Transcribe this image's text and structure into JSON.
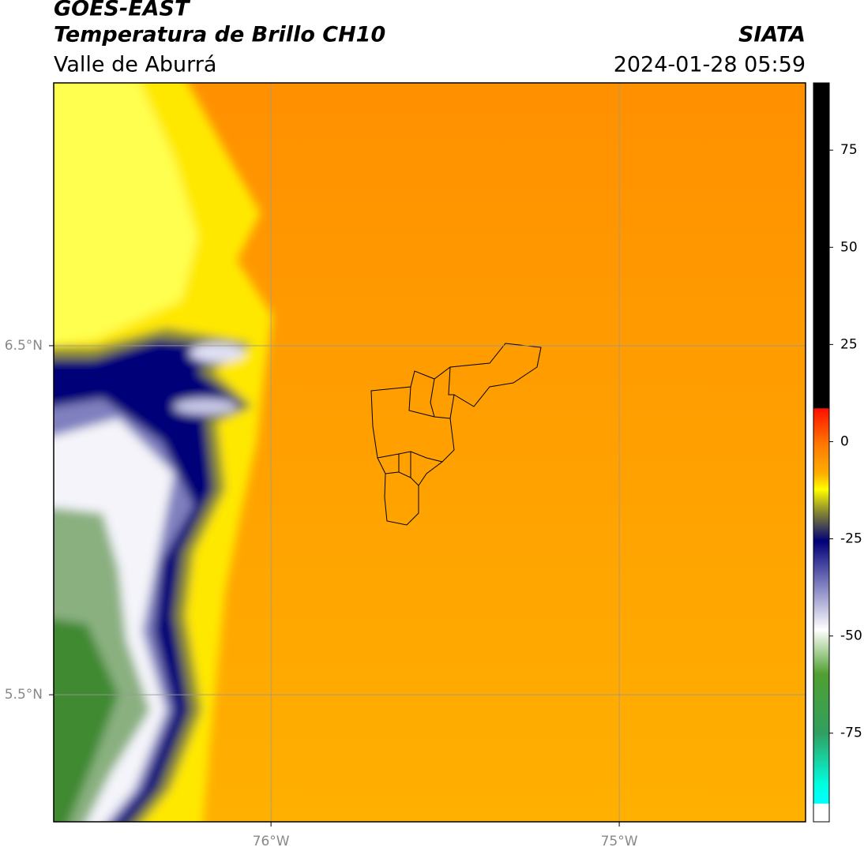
{
  "header": {
    "title": "GOES-EAST",
    "subtitle": "Temperatura de Brillo CH10",
    "region": "Valle de Aburrá",
    "source": "SIATA",
    "timestamp": "2024-01-28 05:59"
  },
  "map": {
    "xlim": [
      -76.624,
      -74.465
    ],
    "ylim": [
      5.136,
      7.253
    ],
    "xticks": [
      {
        "value": -76,
        "label": "76°W"
      },
      {
        "value": -75,
        "label": "75°W"
      }
    ],
    "yticks": [
      {
        "value": 6.5,
        "label": "6.5°N"
      },
      {
        "value": 5.5,
        "label": "5.5°N"
      }
    ]
  },
  "colorbar": {
    "clim": [
      -97.8,
      92.3
    ],
    "ticks": [
      75,
      50,
      25,
      0,
      -25,
      -50,
      -75
    ]
  }
}
